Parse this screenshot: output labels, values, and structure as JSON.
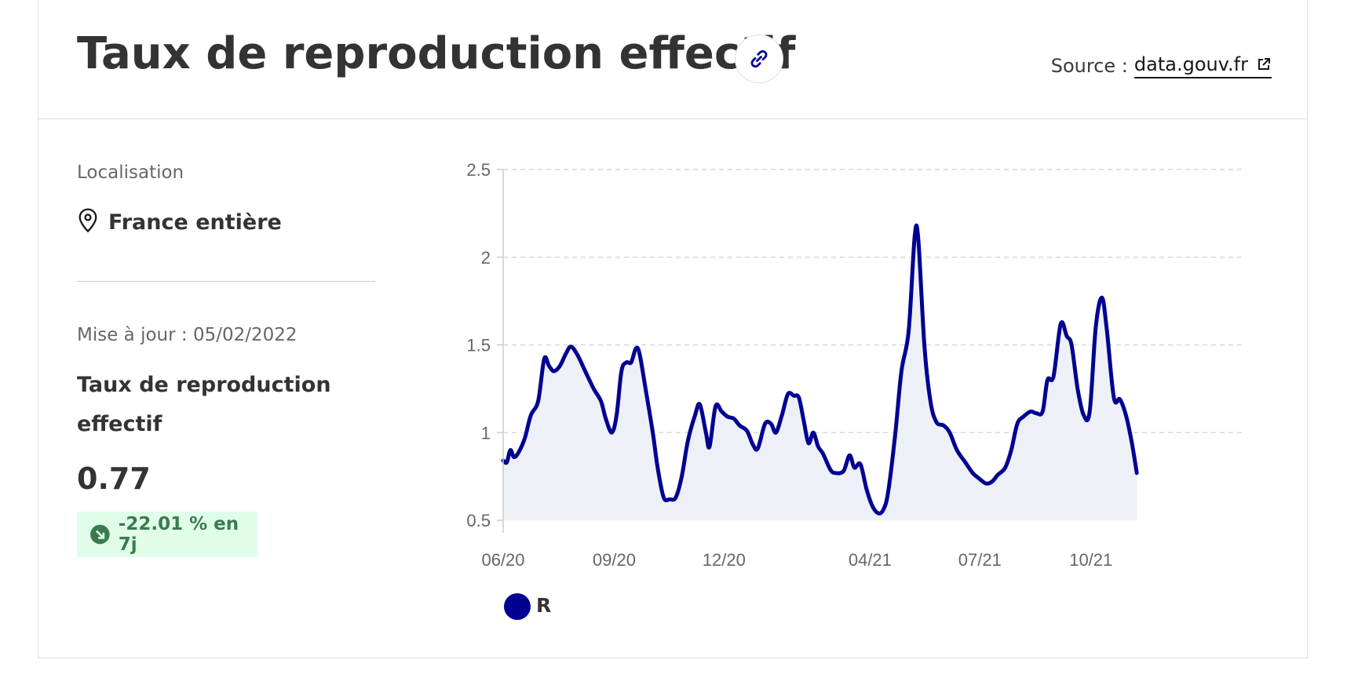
{
  "header": {
    "title": "Taux de reproduction effectif",
    "copy_link_icon": "link-icon",
    "source_prefix": "Source :",
    "source_link": "data.gouv.fr",
    "external_icon": "external-link-icon"
  },
  "sidebar": {
    "location_label": "Localisation",
    "location_icon": "map-pin-icon",
    "location_value": "France entière",
    "update_text": "Mise à jour : 05/02/2022",
    "indicator_name": "Taux de reproduction effectif",
    "indicator_value": "0.77",
    "evolution_text": "-22.01 % en 7j",
    "evolution_icon": "arrow-down-right-icon"
  },
  "colors": {
    "series": "#000091",
    "area_fill": "#eef0f8",
    "badge_bg": "#dffde9",
    "badge_text": "#3b7a4d"
  },
  "chart_data": {
    "type": "area",
    "ylim": [
      0.5,
      2.5
    ],
    "yticks": [
      0.5,
      1,
      1.5,
      2,
      2.5
    ],
    "ytick_labels": [
      "0.5",
      "1",
      "1.5",
      "2",
      "2.5"
    ],
    "xlim": [
      "2020-06-01",
      "2022-02-05"
    ],
    "xtick_labels": [
      "06/20",
      "09/20",
      "12/20",
      "04/21",
      "07/21",
      "10/21"
    ],
    "xtick_dates": [
      "2020-06-01",
      "2020-09-01",
      "2020-12-01",
      "2021-04-01",
      "2021-07-01",
      "2021-10-01"
    ],
    "grid": "horizontal-dashed",
    "legend_position": "bottom-left",
    "series": [
      {
        "name": "R",
        "points": [
          [
            "2020-06-01",
            0.84
          ],
          [
            "2020-06-04",
            0.83
          ],
          [
            "2020-06-07",
            0.9
          ],
          [
            "2020-06-10",
            0.86
          ],
          [
            "2020-06-14",
            0.89
          ],
          [
            "2020-06-19",
            0.97
          ],
          [
            "2020-06-24",
            1.1
          ],
          [
            "2020-06-30",
            1.18
          ],
          [
            "2020-07-05",
            1.42
          ],
          [
            "2020-07-09",
            1.38
          ],
          [
            "2020-07-13",
            1.35
          ],
          [
            "2020-07-18",
            1.38
          ],
          [
            "2020-07-23",
            1.45
          ],
          [
            "2020-07-27",
            1.49
          ],
          [
            "2020-08-01",
            1.45
          ],
          [
            "2020-08-08",
            1.35
          ],
          [
            "2020-08-15",
            1.25
          ],
          [
            "2020-08-21",
            1.18
          ],
          [
            "2020-08-25",
            1.08
          ],
          [
            "2020-08-30",
            1.0
          ],
          [
            "2020-09-03",
            1.1
          ],
          [
            "2020-09-07",
            1.35
          ],
          [
            "2020-09-11",
            1.4
          ],
          [
            "2020-09-15",
            1.4
          ],
          [
            "2020-09-19",
            1.48
          ],
          [
            "2020-09-22",
            1.45
          ],
          [
            "2020-09-27",
            1.25
          ],
          [
            "2020-10-03",
            1.0
          ],
          [
            "2020-10-07",
            0.8
          ],
          [
            "2020-10-12",
            0.63
          ],
          [
            "2020-10-17",
            0.62
          ],
          [
            "2020-10-22",
            0.63
          ],
          [
            "2020-10-27",
            0.75
          ],
          [
            "2020-11-01",
            0.95
          ],
          [
            "2020-11-07",
            1.1
          ],
          [
            "2020-11-11",
            1.16
          ],
          [
            "2020-11-16",
            1.0
          ],
          [
            "2020-11-19",
            0.92
          ],
          [
            "2020-11-24",
            1.15
          ],
          [
            "2020-11-29",
            1.12
          ],
          [
            "2020-12-04",
            1.09
          ],
          [
            "2020-12-09",
            1.08
          ],
          [
            "2020-12-14",
            1.04
          ],
          [
            "2020-12-20",
            1.01
          ],
          [
            "2020-12-25",
            0.93
          ],
          [
            "2020-12-29",
            0.91
          ],
          [
            "2021-01-04",
            1.05
          ],
          [
            "2021-01-09",
            1.05
          ],
          [
            "2021-01-13",
            1.0
          ],
          [
            "2021-01-18",
            1.1
          ],
          [
            "2021-01-23",
            1.22
          ],
          [
            "2021-01-28",
            1.21
          ],
          [
            "2021-02-01",
            1.2
          ],
          [
            "2021-02-05",
            1.07
          ],
          [
            "2021-02-09",
            0.94
          ],
          [
            "2021-02-13",
            1.0
          ],
          [
            "2021-02-17",
            0.92
          ],
          [
            "2021-02-21",
            0.88
          ],
          [
            "2021-02-27",
            0.79
          ],
          [
            "2021-03-03",
            0.77
          ],
          [
            "2021-03-10",
            0.78
          ],
          [
            "2021-03-15",
            0.87
          ],
          [
            "2021-03-19",
            0.8
          ],
          [
            "2021-03-24",
            0.82
          ],
          [
            "2021-03-29",
            0.68
          ],
          [
            "2021-04-03",
            0.58
          ],
          [
            "2021-04-08",
            0.54
          ],
          [
            "2021-04-12",
            0.56
          ],
          [
            "2021-04-16",
            0.66
          ],
          [
            "2021-04-22",
            1.0
          ],
          [
            "2021-04-27",
            1.35
          ],
          [
            "2021-05-03",
            1.58
          ],
          [
            "2021-05-08",
            2.12
          ],
          [
            "2021-05-11",
            2.1
          ],
          [
            "2021-05-16",
            1.5
          ],
          [
            "2021-05-21",
            1.18
          ],
          [
            "2021-05-26",
            1.06
          ],
          [
            "2021-06-01",
            1.04
          ],
          [
            "2021-06-06",
            1.0
          ],
          [
            "2021-06-12",
            0.9
          ],
          [
            "2021-06-19",
            0.83
          ],
          [
            "2021-06-25",
            0.77
          ],
          [
            "2021-06-30",
            0.74
          ],
          [
            "2021-07-06",
            0.71
          ],
          [
            "2021-07-11",
            0.72
          ],
          [
            "2021-07-16",
            0.76
          ],
          [
            "2021-07-22",
            0.8
          ],
          [
            "2021-07-27",
            0.9
          ],
          [
            "2021-08-01",
            1.05
          ],
          [
            "2021-08-06",
            1.09
          ],
          [
            "2021-08-12",
            1.12
          ],
          [
            "2021-08-17",
            1.11
          ],
          [
            "2021-08-22",
            1.12
          ],
          [
            "2021-08-26",
            1.3
          ],
          [
            "2021-08-31",
            1.32
          ],
          [
            "2021-09-06",
            1.62
          ],
          [
            "2021-09-11",
            1.55
          ],
          [
            "2021-09-15",
            1.5
          ],
          [
            "2021-09-20",
            1.25
          ],
          [
            "2021-09-25",
            1.1
          ],
          [
            "2021-09-30",
            1.12
          ],
          [
            "2021-10-05",
            1.6
          ],
          [
            "2021-10-10",
            1.77
          ],
          [
            "2021-10-14",
            1.6
          ],
          [
            "2021-10-20",
            1.2
          ],
          [
            "2021-10-25",
            1.19
          ],
          [
            "2021-10-30",
            1.1
          ],
          [
            "2021-11-04",
            0.94
          ],
          [
            "2021-11-08",
            0.77
          ]
        ]
      }
    ]
  }
}
